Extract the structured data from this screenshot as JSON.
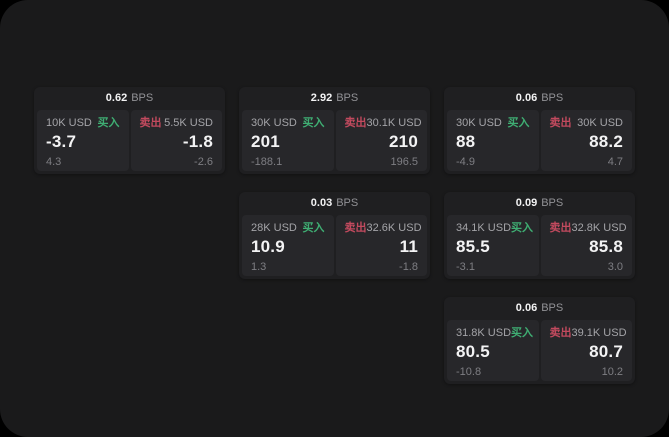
{
  "labels": {
    "buy": "买入",
    "sell": "卖出",
    "bps": "BPS"
  },
  "colors": {
    "buy": "#3fae73",
    "sell": "#c24a5e",
    "surface": "#1a1a1b",
    "card": "#1f1f21",
    "panel": "#27272a",
    "value_text": "#f3f3f4",
    "muted_text": "#7e7e83"
  },
  "cards": [
    {
      "bps": "0.62",
      "buy": {
        "amount": "10K USD",
        "value": "-3.7",
        "sub": "4.3"
      },
      "sell": {
        "amount": "5.5K USD",
        "value": "-1.8",
        "sub": "-2.6"
      }
    },
    {
      "bps": "2.92",
      "buy": {
        "amount": "30K USD",
        "value": "201",
        "sub": "-188.1"
      },
      "sell": {
        "amount": "30.1K USD",
        "value": "210",
        "sub": "196.5"
      }
    },
    {
      "bps": "0.06",
      "buy": {
        "amount": "30K USD",
        "value": "88",
        "sub": "-4.9"
      },
      "sell": {
        "amount": "30K USD",
        "value": "88.2",
        "sub": "4.7"
      }
    },
    {
      "bps": "0.03",
      "buy": {
        "amount": "28K USD",
        "value": "10.9",
        "sub": "1.3"
      },
      "sell": {
        "amount": "32.6K USD",
        "value": "11",
        "sub": "-1.8"
      }
    },
    {
      "bps": "0.09",
      "buy": {
        "amount": "34.1K USD",
        "value": "85.5",
        "sub": "-3.1"
      },
      "sell": {
        "amount": "32.8K USD",
        "value": "85.8",
        "sub": "3.0"
      }
    },
    {
      "bps": "0.06",
      "buy": {
        "amount": "31.8K USD",
        "value": "80.5",
        "sub": "-10.8"
      },
      "sell": {
        "amount": "39.1K USD",
        "value": "80.7",
        "sub": "10.2"
      }
    }
  ]
}
